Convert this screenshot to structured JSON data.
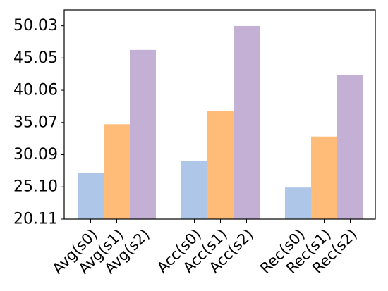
{
  "chart_data": {
    "type": "bar",
    "title": "",
    "xlabel": "",
    "ylabel": "",
    "categories": [
      "Avg(s0)",
      "Avg(s1)",
      "Avg(s2)",
      "Acc(s0)",
      "Acc(s1)",
      "Acc(s2)",
      "Rec(s0)",
      "Rec(s1)",
      "Rec(s2)"
    ],
    "values": [
      27.2,
      34.8,
      46.3,
      29.1,
      36.8,
      50.0,
      25.0,
      32.9,
      42.4
    ],
    "colors": [
      "#aec7e8",
      "#ffbb78",
      "#c5b0d5",
      "#aec7e8",
      "#ffbb78",
      "#c5b0d5",
      "#aec7e8",
      "#ffbb78",
      "#c5b0d5"
    ],
    "yticks": [
      "20.11",
      "25.10",
      "30.09",
      "35.07",
      "40.06",
      "45.05",
      "50.03"
    ],
    "ylim": [
      20.11,
      52.5
    ],
    "grid": false,
    "legend": "none"
  }
}
